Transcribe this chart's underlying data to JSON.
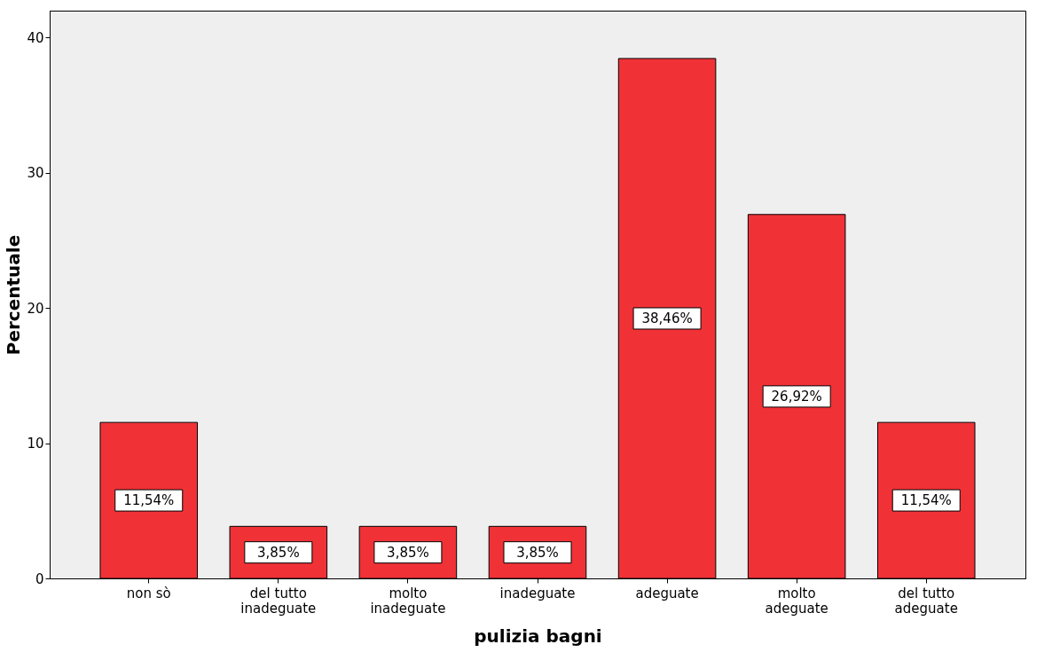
{
  "chart_data": {
    "type": "bar",
    "xlabel": "pulizia bagni",
    "ylabel": "Percentuale",
    "categories": [
      "non sò",
      "del tutto inadeguate",
      "molto inadeguate",
      "inadeguate",
      "adeguate",
      "molto adeguate",
      "del tutto adeguate"
    ],
    "values": [
      11.54,
      3.85,
      3.85,
      3.85,
      38.46,
      26.92,
      11.54
    ],
    "value_labels": [
      "11,54%",
      "3,85%",
      "3,85%",
      "3,85%",
      "38,46%",
      "26,92%",
      "11,54%"
    ],
    "color": "#f03237",
    "ylim": [
      0,
      42
    ],
    "yticks": [
      0,
      10,
      20,
      30,
      40
    ],
    "grid": false
  }
}
